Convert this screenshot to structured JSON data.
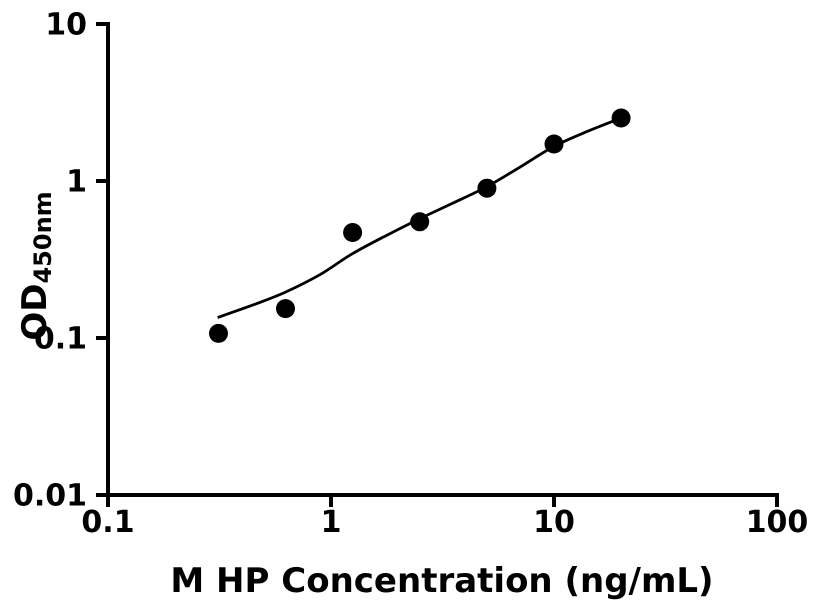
{
  "chart_data": {
    "type": "scatter",
    "title": "",
    "xlabel": "M HP Concentration (ng/mL)",
    "ylabel_main": "OD",
    "ylabel_sub": "450nm",
    "x_scale": "log",
    "y_scale": "log",
    "xlim": [
      0.1,
      100
    ],
    "ylim": [
      0.01,
      10
    ],
    "x_ticks": {
      "values": [
        0.1,
        1,
        10,
        100
      ],
      "labels": [
        "0.1",
        "1",
        "10",
        "100"
      ]
    },
    "y_ticks": {
      "values": [
        0.01,
        0.1,
        1,
        10
      ],
      "labels": [
        "0.01",
        "0.1",
        "1",
        "10"
      ]
    },
    "grid": false,
    "legend": "none",
    "colors": {
      "foreground": "#000000",
      "background": "#ffffff"
    },
    "series": [
      {
        "name": "standard-points",
        "type": "scatter",
        "marker": "filled-circle",
        "color": "#000000",
        "x": [
          0.313,
          0.625,
          1.25,
          2.5,
          5,
          10,
          20
        ],
        "y": [
          0.107,
          0.154,
          0.47,
          0.55,
          0.9,
          1.72,
          2.52
        ]
      },
      {
        "name": "fit-curve",
        "type": "line",
        "color": "#000000",
        "x": [
          0.31,
          0.45,
          0.625,
          0.9,
          1.25,
          1.8,
          2.5,
          3.5,
          5,
          7,
          10,
          14,
          20
        ],
        "y": [
          0.135,
          0.163,
          0.196,
          0.255,
          0.345,
          0.455,
          0.575,
          0.72,
          0.92,
          1.22,
          1.66,
          2.06,
          2.52
        ]
      }
    ]
  }
}
